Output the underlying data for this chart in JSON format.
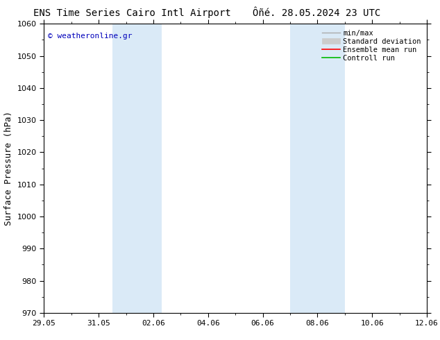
{
  "title_left": "ENS Time Series Cairo Intl Airport",
  "title_right": "Ôñé. 28.05.2024 23 UTC",
  "ylabel": "Surface Pressure (hPa)",
  "ylim": [
    970,
    1060
  ],
  "yticks": [
    970,
    980,
    990,
    1000,
    1010,
    1020,
    1030,
    1040,
    1050,
    1060
  ],
  "xlim_start": 0.0,
  "xlim_end": 14.0,
  "xtick_labels": [
    "29.05",
    "31.05",
    "02.06",
    "04.06",
    "06.06",
    "08.06",
    "10.06",
    "12.06"
  ],
  "xtick_positions": [
    0,
    2,
    4,
    6,
    8,
    10,
    12,
    14
  ],
  "shaded_bands": [
    {
      "x_start": 2.5,
      "x_end": 4.3
    },
    {
      "x_start": 9.0,
      "x_end": 11.0
    }
  ],
  "band_color": "#daeaf7",
  "copyright_text": "© weatheronline.gr",
  "copyright_color": "#0000bb",
  "legend_labels": [
    "min/max",
    "Standard deviation",
    "Ensemble mean run",
    "Controll run"
  ],
  "legend_line_colors": [
    "#aaaaaa",
    "#cccccc",
    "#ff0000",
    "#00bb00"
  ],
  "bg_color": "#ffffff",
  "plot_bg_color": "#ffffff",
  "title_fontsize": 10,
  "label_fontsize": 9,
  "tick_fontsize": 8,
  "legend_fontsize": 7.5
}
